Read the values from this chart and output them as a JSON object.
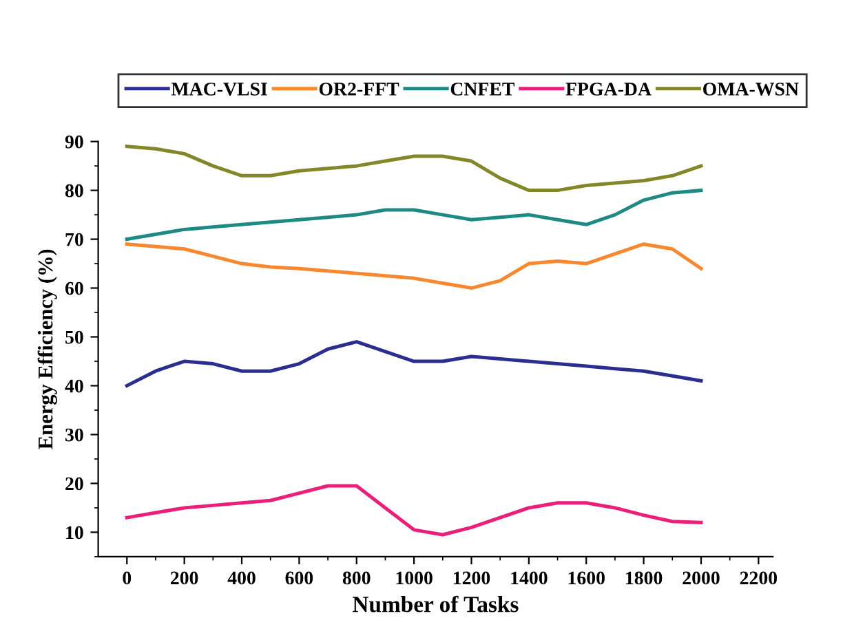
{
  "chart_data": {
    "type": "line",
    "xlabel": "Number of Tasks",
    "ylabel": "Energy Efficiency (%)",
    "x": [
      0,
      100,
      200,
      300,
      400,
      500,
      600,
      700,
      800,
      900,
      1000,
      1100,
      1200,
      1300,
      1400,
      1500,
      1600,
      1700,
      1800,
      1900,
      2000
    ],
    "series": [
      {
        "name": "MAC-VLSI",
        "color": "#2b2e8f",
        "values": [
          40,
          43,
          45,
          44.5,
          43,
          43,
          44.5,
          47.5,
          49,
          47,
          45,
          45,
          46,
          45.5,
          45,
          44.5,
          44,
          43.5,
          43,
          42,
          41
        ]
      },
      {
        "name": "OR2-FFT",
        "color": "#f7882f",
        "values": [
          69,
          68.5,
          68,
          66.5,
          65,
          64.3,
          64,
          63.5,
          63,
          62.5,
          62,
          61,
          60,
          61.5,
          65,
          65.5,
          65,
          67,
          69,
          68,
          64
        ]
      },
      {
        "name": "CNFET",
        "color": "#1f8a84",
        "values": [
          70,
          71,
          72,
          72.5,
          73,
          73.5,
          74,
          74.5,
          75,
          76,
          76,
          75,
          74,
          74.5,
          75,
          74,
          73,
          75,
          78,
          79.5,
          80
        ]
      },
      {
        "name": "FPGA-DA",
        "color": "#ea1f7a",
        "values": [
          13,
          14,
          15,
          15.5,
          16,
          16.5,
          18,
          19.5,
          19.5,
          15,
          10.5,
          9.5,
          11,
          13,
          15,
          16,
          16,
          15,
          13.5,
          12.2,
          12
        ]
      },
      {
        "name": "OMA-WSN",
        "color": "#84862a",
        "values": [
          89,
          88.5,
          87.5,
          85,
          83,
          83,
          84,
          84.5,
          85,
          86,
          87,
          87,
          86,
          82.5,
          80,
          80,
          81,
          81.5,
          82,
          83,
          85
        ]
      }
    ],
    "xlim": [
      -100,
      2250
    ],
    "ylim": [
      5,
      90
    ],
    "xticks": [
      0,
      {
        "value": 100,
        "label": null
      },
      200,
      {
        "value": 300,
        "label": null
      },
      400,
      {
        "value": 500,
        "label": null
      },
      600,
      {
        "value": 700,
        "label": null
      },
      800,
      {
        "value": 900,
        "label": null
      },
      1000,
      {
        "value": 1100,
        "label": null
      },
      1200,
      {
        "value": 1300,
        "label": null
      },
      1400,
      {
        "value": 1500,
        "label": null
      },
      1600,
      {
        "value": 1700,
        "label": null
      },
      1800,
      {
        "value": 1900,
        "label": null
      },
      2000,
      {
        "value": 2100,
        "label": null
      },
      2200
    ],
    "yticks": [
      {
        "value": 5,
        "label": null
      },
      10,
      {
        "value": 15,
        "label": null
      },
      20,
      {
        "value": 25,
        "label": null
      },
      30,
      {
        "value": 35,
        "label": null
      },
      40,
      {
        "value": 45,
        "label": null
      },
      50,
      {
        "value": 55,
        "label": null
      },
      60,
      {
        "value": 65,
        "label": null
      },
      70,
      {
        "value": 75,
        "label": null
      },
      80,
      {
        "value": 85,
        "label": null
      },
      90
    ],
    "legend": "top",
    "grid": false,
    "marker": "none",
    "line_style": "solid"
  }
}
